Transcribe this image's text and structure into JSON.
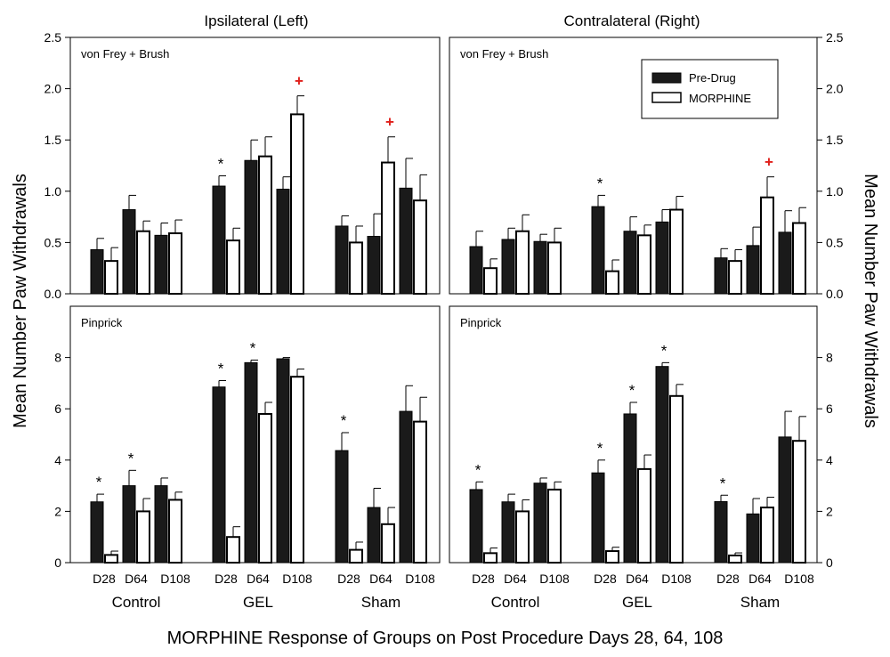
{
  "figure": {
    "column_titles": [
      "Ipsilateral (Left)",
      "Contralateral (Right)"
    ],
    "y_axis_label_left": "Mean Number Paw Withdrawals",
    "y_axis_label_right": "Mean Number Paw Withdrawals",
    "x_axis_title": "MORPHINE Response of Groups on Post Procedure Days 28, 64, 108",
    "group_labels": [
      "Control",
      "GEL",
      "Sham"
    ],
    "day_labels": [
      "D28",
      "D64",
      "D108"
    ],
    "legend": {
      "position": "top-right of contralateral von Frey panel",
      "entries": [
        "Pre-Drug",
        "MORPHINE"
      ]
    },
    "colors": {
      "pre_drug": "#1a1a1a",
      "morphine": "#ffffff",
      "plus_marker": "#e0201b",
      "outline": "#000000"
    }
  },
  "chart_data": [
    {
      "type": "bar",
      "panel": "ipsilateral-vonfrey",
      "title": "Ipsilateral (Left)",
      "subtitle": "von Frey + Brush",
      "ylim": [
        0,
        2.5
      ],
      "yticks": [
        "0.0",
        "0.5",
        "1.0",
        "1.5",
        "2.0",
        "2.5"
      ],
      "groups": [
        "Control",
        "GEL",
        "Sham"
      ],
      "days": [
        "D28",
        "D64",
        "D108"
      ],
      "series": [
        {
          "name": "Pre-Drug",
          "values": [
            0.43,
            0.82,
            0.57,
            1.05,
            1.3,
            1.02,
            0.66,
            0.56,
            1.03
          ],
          "errors": [
            0.11,
            0.14,
            0.12,
            0.1,
            0.2,
            0.12,
            0.1,
            0.22,
            0.29
          ]
        },
        {
          "name": "MORPHINE",
          "values": [
            0.32,
            0.61,
            0.59,
            0.52,
            1.34,
            1.75,
            0.5,
            1.28,
            0.91
          ],
          "errors": [
            0.13,
            0.1,
            0.13,
            0.12,
            0.19,
            0.18,
            0.16,
            0.25,
            0.25
          ]
        }
      ],
      "star_marks": [
        [
          0,
          3
        ]
      ],
      "plus_marks": [
        [
          1,
          5
        ],
        [
          1,
          7
        ]
      ]
    },
    {
      "type": "bar",
      "panel": "contralateral-vonfrey",
      "title": "Contralateral (Right)",
      "subtitle": "von Frey + Brush",
      "ylim": [
        0,
        2.5
      ],
      "yticks": [
        "0.0",
        "0.5",
        "1.0",
        "1.5",
        "2.0",
        "2.5"
      ],
      "groups": [
        "Control",
        "GEL",
        "Sham"
      ],
      "days": [
        "D28",
        "D64",
        "D108"
      ],
      "series": [
        {
          "name": "Pre-Drug",
          "values": [
            0.46,
            0.53,
            0.51,
            0.85,
            0.61,
            0.7,
            0.35,
            0.47,
            0.6
          ],
          "errors": [
            0.15,
            0.11,
            0.07,
            0.11,
            0.14,
            0.12,
            0.09,
            0.18,
            0.21
          ]
        },
        {
          "name": "MORPHINE",
          "values": [
            0.25,
            0.61,
            0.5,
            0.22,
            0.57,
            0.82,
            0.32,
            0.94,
            0.69
          ],
          "errors": [
            0.09,
            0.16,
            0.14,
            0.11,
            0.1,
            0.13,
            0.11,
            0.2,
            0.15
          ]
        }
      ],
      "star_marks": [
        [
          0,
          3
        ]
      ],
      "plus_marks": [
        [
          1,
          7
        ]
      ]
    },
    {
      "type": "bar",
      "panel": "ipsilateral-pinprick",
      "subtitle": "Pinprick",
      "ylim": [
        0,
        10
      ],
      "yticks": [
        "0",
        "2",
        "4",
        "6",
        "8"
      ],
      "groups": [
        "Control",
        "GEL",
        "Sham"
      ],
      "days": [
        "D28",
        "D64",
        "D108"
      ],
      "series": [
        {
          "name": "Pre-Drug",
          "values": [
            2.37,
            3.0,
            3.0,
            6.85,
            7.8,
            7.95,
            4.37,
            2.15,
            5.9
          ],
          "errors": [
            0.3,
            0.6,
            0.3,
            0.25,
            0.1,
            0.05,
            0.7,
            0.75,
            1.0
          ]
        },
        {
          "name": "MORPHINE",
          "values": [
            0.3,
            2.0,
            2.45,
            1.0,
            5.8,
            7.25,
            0.5,
            1.5,
            5.5
          ],
          "errors": [
            0.15,
            0.5,
            0.3,
            0.4,
            0.45,
            0.3,
            0.3,
            0.65,
            0.95
          ]
        }
      ],
      "star_marks": [
        [
          0,
          0
        ],
        [
          0,
          1
        ],
        [
          0,
          3
        ],
        [
          0,
          4
        ],
        [
          0,
          6
        ]
      ],
      "plus_marks": []
    },
    {
      "type": "bar",
      "panel": "contralateral-pinprick",
      "subtitle": "Pinprick",
      "ylim": [
        0,
        10
      ],
      "yticks": [
        "0",
        "2",
        "4",
        "6",
        "8"
      ],
      "groups": [
        "Control",
        "GEL",
        "Sham"
      ],
      "days": [
        "D28",
        "D64",
        "D108"
      ],
      "series": [
        {
          "name": "Pre-Drug",
          "values": [
            2.85,
            2.37,
            3.1,
            3.5,
            5.8,
            7.65,
            2.38,
            1.9,
            4.9
          ],
          "errors": [
            0.3,
            0.3,
            0.2,
            0.5,
            0.45,
            0.15,
            0.25,
            0.6,
            1.0
          ]
        },
        {
          "name": "MORPHINE",
          "values": [
            0.37,
            2.0,
            2.85,
            0.45,
            3.65,
            6.5,
            0.28,
            2.15,
            4.75
          ],
          "errors": [
            0.2,
            0.45,
            0.3,
            0.15,
            0.55,
            0.45,
            0.1,
            0.4,
            0.95
          ]
        }
      ],
      "star_marks": [
        [
          0,
          0
        ],
        [
          0,
          3
        ],
        [
          0,
          4
        ],
        [
          0,
          5
        ],
        [
          0,
          6
        ]
      ],
      "plus_marks": []
    }
  ]
}
